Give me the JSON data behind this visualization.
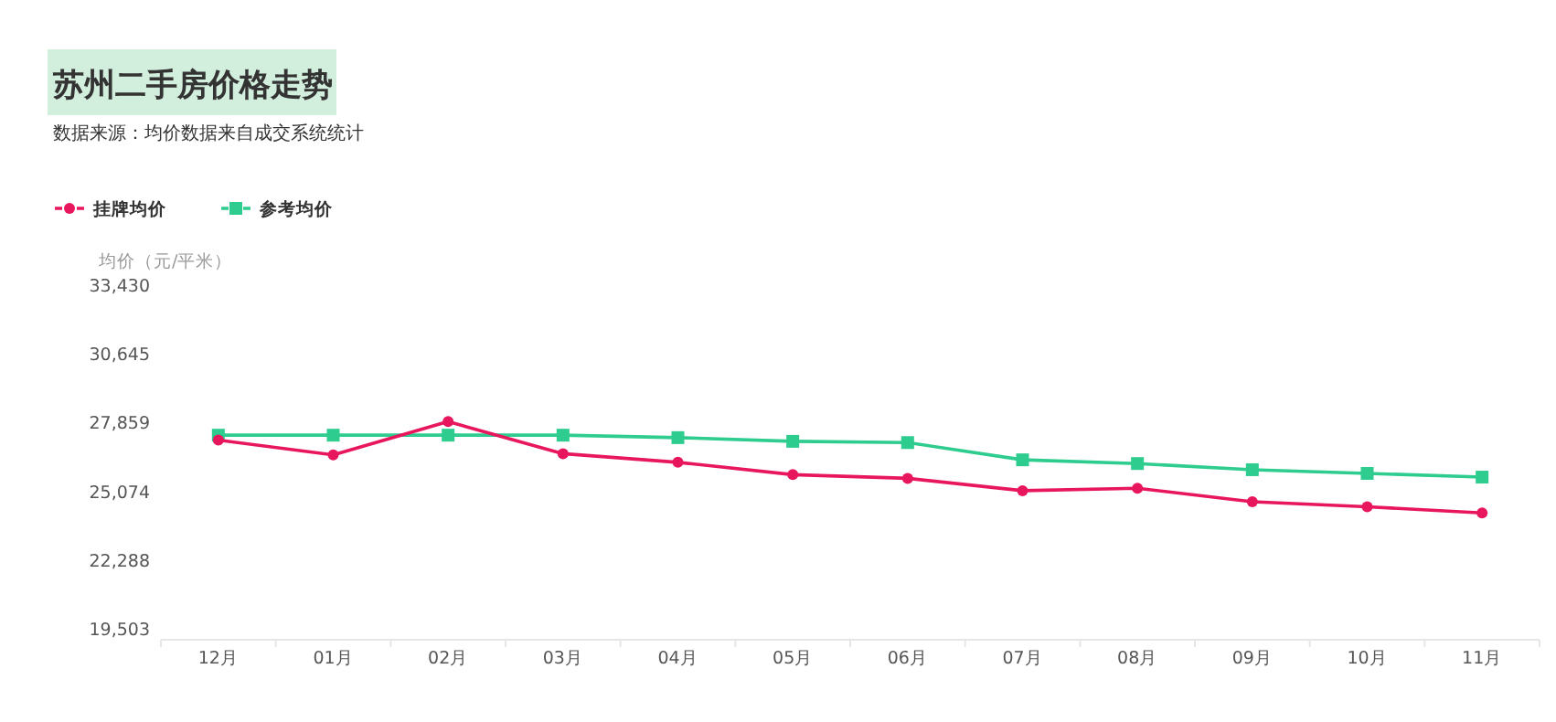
{
  "chart_data": {
    "type": "line",
    "title": "苏州二手房价格走势",
    "subtitle": "数据来源：均价数据来自成交系统统计",
    "ylabel": "均价（元/平米）",
    "categories": [
      "12月",
      "01月",
      "02月",
      "03月",
      "04月",
      "05月",
      "06月",
      "07月",
      "08月",
      "09月",
      "10月",
      "11月"
    ],
    "series": [
      {
        "name": "挂牌均价",
        "color": "#e8175d",
        "marker": "circle",
        "values": [
          27150,
          26550,
          27900,
          26600,
          26250,
          25750,
          25600,
          25100,
          25200,
          24650,
          24450,
          24200
        ]
      },
      {
        "name": "参考均价",
        "color": "#2ecc8f",
        "marker": "square",
        "values": [
          27350,
          27350,
          27350,
          27350,
          27250,
          27100,
          27050,
          26350,
          26200,
          25950,
          25800,
          25650
        ]
      }
    ],
    "ylim": [
      19503,
      33430
    ],
    "yticks": [
      {
        "value": 19503,
        "label": "19,503"
      },
      {
        "value": 22288,
        "label": "22,288"
      },
      {
        "value": 25074,
        "label": "25,074"
      },
      {
        "value": 27859,
        "label": "27,859"
      },
      {
        "value": 30645,
        "label": "30,645"
      },
      {
        "value": 33430,
        "label": "33,430"
      }
    ],
    "grid": false,
    "legend": "top left"
  }
}
